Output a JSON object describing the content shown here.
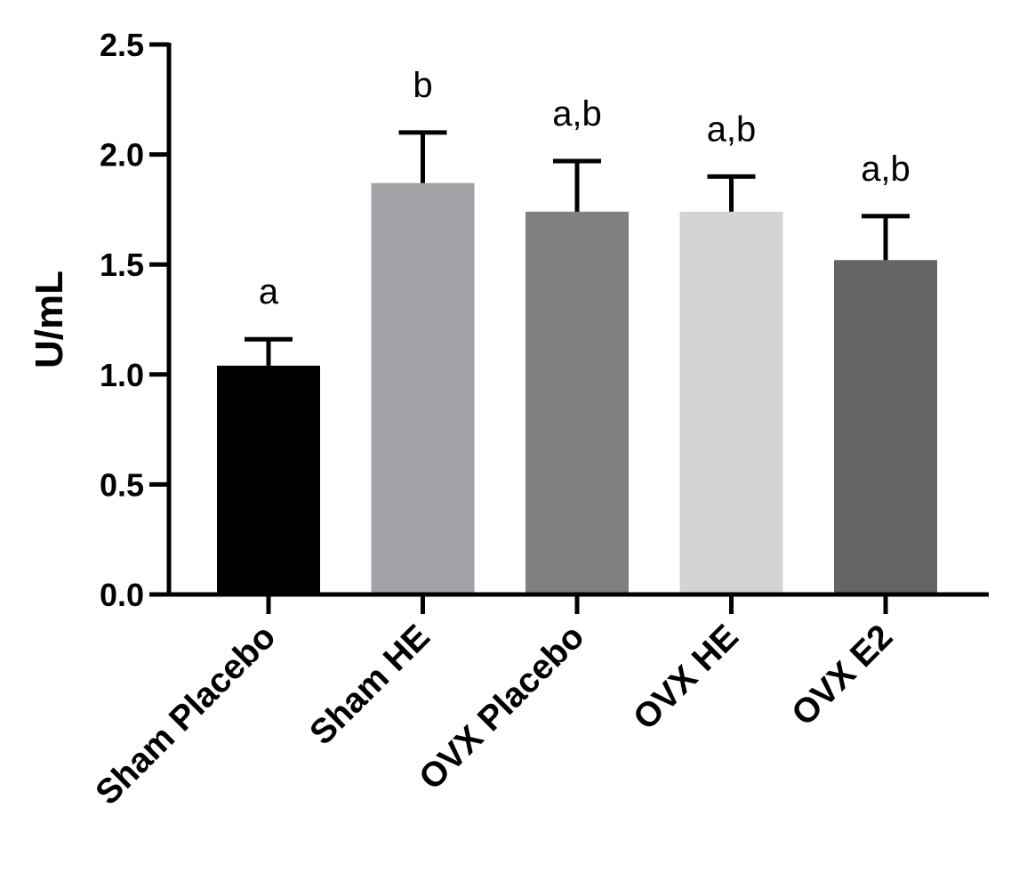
{
  "chart_data": {
    "type": "bar",
    "title": "",
    "xlabel": "",
    "ylabel": "U/mL",
    "ylim": [
      0,
      2.5
    ],
    "yticks": [
      "0.0",
      "0.5",
      "1.0",
      "1.5",
      "2.0",
      "2.5"
    ],
    "categories": [
      "Sham Placebo",
      "Sham HE",
      "OVX Placebo",
      "OVX HE",
      "OVX E2"
    ],
    "values": [
      1.04,
      1.87,
      1.74,
      1.74,
      1.52
    ],
    "error_upper": [
      0.12,
      0.23,
      0.23,
      0.16,
      0.2
    ],
    "annotations": [
      "a",
      "b",
      "a,b",
      "a,b",
      "a,b"
    ],
    "colors": [
      "#000000",
      "#a2a1a6",
      "#808080",
      "#d3d3d3",
      "#646464"
    ],
    "grid": false,
    "legend": "none"
  }
}
